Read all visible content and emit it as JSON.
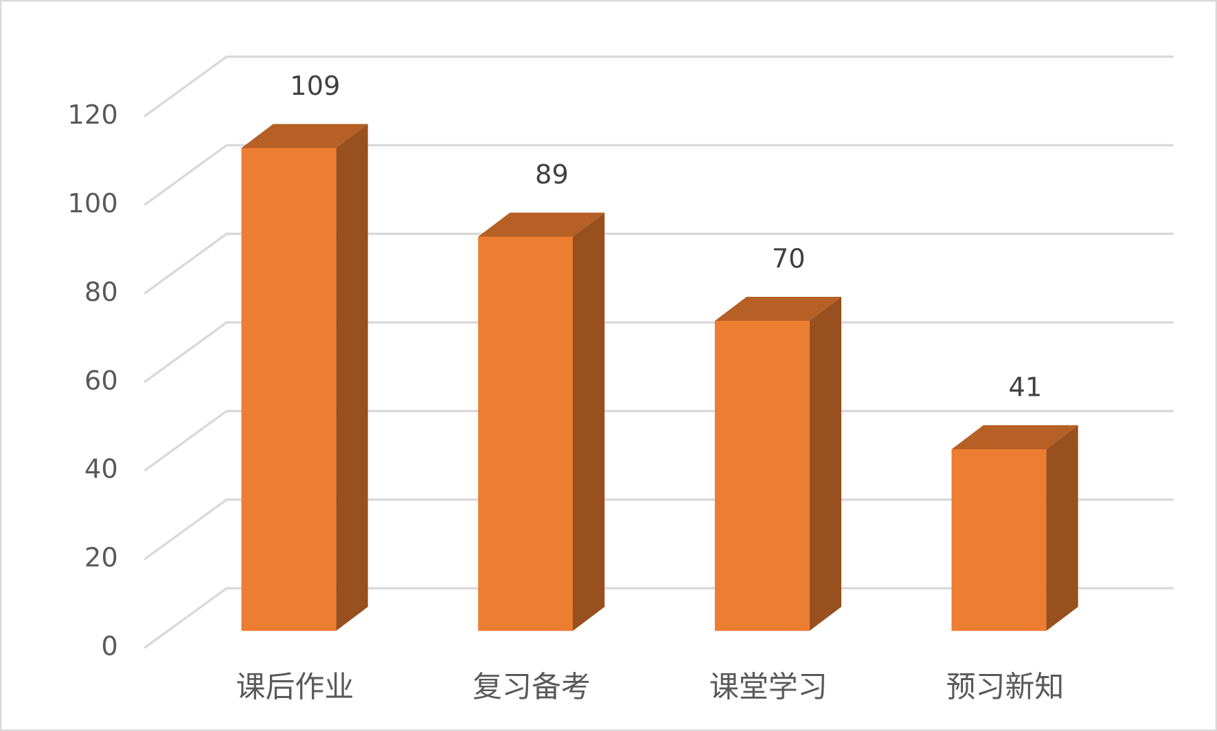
{
  "chart_data": {
    "type": "bar3d",
    "categories": [
      "课后作业",
      "复习备考",
      "课堂学习",
      "预习新知"
    ],
    "values": [
      109,
      89,
      70,
      41
    ],
    "color": "#ed7d31",
    "ylim": [
      0,
      120
    ],
    "yticks": [
      0,
      20,
      40,
      60,
      80,
      100,
      120
    ],
    "grid": true
  }
}
